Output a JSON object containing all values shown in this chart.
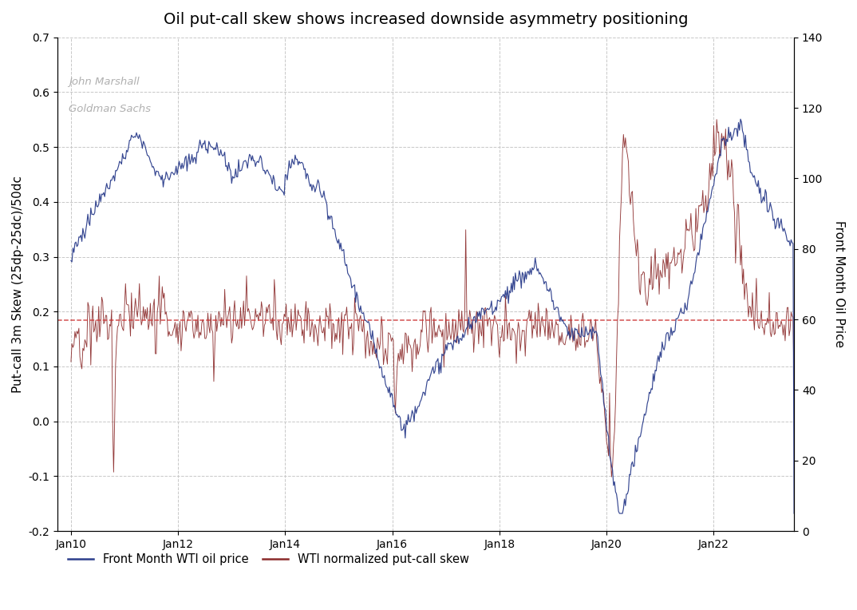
{
  "title": "Oil put-call skew shows increased downside asymmetry positioning",
  "watermark_line1": "John Marshall",
  "watermark_line2": "Goldman Sachs",
  "ylabel_left": "Put-call 3m Skew (25dp-25dc)/50dc",
  "ylabel_right": "Front Month Oil Price",
  "ylim_left": [
    -0.2,
    0.7
  ],
  "ylim_right": [
    0,
    140
  ],
  "yticks_left": [
    -0.2,
    -0.1,
    0.0,
    0.1,
    0.2,
    0.3,
    0.4,
    0.5,
    0.6,
    0.7
  ],
  "yticks_right": [
    0,
    20,
    40,
    60,
    80,
    100,
    120,
    140
  ],
  "xtick_labels": [
    "Jan10",
    "Jan12",
    "Jan14",
    "Jan16",
    "Jan18",
    "Jan20",
    "Jan22"
  ],
  "hline_y": 0.185,
  "hline_color": "#cc3333",
  "hline_style": "--",
  "line1_color": "#2c3e8c",
  "line2_color": "#8b2a2a",
  "legend_label1": "Front Month WTI oil price",
  "legend_label2": "WTI normalized put-call skew",
  "background_color": "#ffffff",
  "grid_color": "#c8c8c8",
  "grid_style": "--",
  "title_fontsize": 14,
  "axis_fontsize": 11,
  "tick_fontsize": 10,
  "watermark_color": "#b0b0b0",
  "start_year": 2009.75,
  "end_year": 2023.5
}
